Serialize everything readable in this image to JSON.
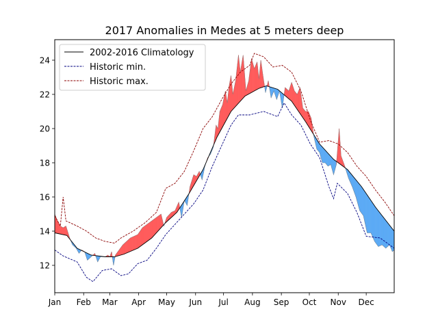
{
  "chart_data": {
    "type": "area",
    "title": "2017 Anomalies in Medes at 5 meters deep",
    "xlabel": "",
    "ylabel": "",
    "x_unit": "day_of_year",
    "xlim": [
      1,
      365
    ],
    "ylim": [
      10.4,
      25.2
    ],
    "yticks": [
      12,
      14,
      16,
      18,
      20,
      22,
      24
    ],
    "x_tick_labels": [
      {
        "day": 1,
        "label": "Jan"
      },
      {
        "day": 32,
        "label": "Feb"
      },
      {
        "day": 60,
        "label": "Mar"
      },
      {
        "day": 91,
        "label": "Apr"
      },
      {
        "day": 121,
        "label": "May"
      },
      {
        "day": 152,
        "label": "Jun"
      },
      {
        "day": 182,
        "label": "Jul"
      },
      {
        "day": 213,
        "label": "Aug"
      },
      {
        "day": 244,
        "label": "Sep"
      },
      {
        "day": 274,
        "label": "Oct"
      },
      {
        "day": 305,
        "label": "Nov"
      },
      {
        "day": 335,
        "label": "Dec"
      }
    ],
    "grid": false,
    "legend_position": "upper-left",
    "colors": {
      "climatology": "#000000",
      "historic_min": "#00007f",
      "historic_max": "#8b0000",
      "above": "#ff5a5a",
      "below": "#5aaaf5"
    },
    "series": [
      {
        "name": "2002-2016 Climatology",
        "style": "solid",
        "points": [
          [
            1,
            13.9
          ],
          [
            14,
            13.75
          ],
          [
            25,
            13.0
          ],
          [
            40,
            12.6
          ],
          [
            55,
            12.5
          ],
          [
            65,
            12.5
          ],
          [
            75,
            12.65
          ],
          [
            90,
            13.0
          ],
          [
            105,
            13.6
          ],
          [
            120,
            14.5
          ],
          [
            132,
            15.1
          ],
          [
            145,
            16.2
          ],
          [
            160,
            17.6
          ],
          [
            175,
            19.5
          ],
          [
            190,
            21.0
          ],
          [
            205,
            21.9
          ],
          [
            220,
            22.35
          ],
          [
            228,
            22.5
          ],
          [
            240,
            22.3
          ],
          [
            255,
            21.6
          ],
          [
            270,
            20.4
          ],
          [
            285,
            19.1
          ],
          [
            300,
            18.2
          ],
          [
            315,
            17.6
          ],
          [
            330,
            16.6
          ],
          [
            345,
            15.4
          ],
          [
            365,
            14.0
          ]
        ]
      },
      {
        "name": "Historic min.",
        "style": "dashed",
        "points": [
          [
            1,
            12.9
          ],
          [
            10,
            12.55
          ],
          [
            25,
            12.2
          ],
          [
            35,
            11.3
          ],
          [
            42,
            11.05
          ],
          [
            52,
            11.7
          ],
          [
            62,
            11.8
          ],
          [
            72,
            11.4
          ],
          [
            80,
            11.5
          ],
          [
            90,
            12.1
          ],
          [
            100,
            12.3
          ],
          [
            110,
            13.0
          ],
          [
            120,
            13.8
          ],
          [
            130,
            14.4
          ],
          [
            140,
            15.0
          ],
          [
            150,
            15.6
          ],
          [
            160,
            16.4
          ],
          [
            170,
            17.8
          ],
          [
            180,
            19.0
          ],
          [
            190,
            20.2
          ],
          [
            198,
            20.8
          ],
          [
            210,
            20.8
          ],
          [
            225,
            21.0
          ],
          [
            240,
            20.7
          ],
          [
            247,
            21.5
          ],
          [
            255,
            20.8
          ],
          [
            265,
            20.2
          ],
          [
            275,
            19.1
          ],
          [
            285,
            18.3
          ],
          [
            295,
            16.6
          ],
          [
            300,
            15.9
          ],
          [
            304,
            16.8
          ],
          [
            315,
            16.2
          ],
          [
            325,
            15.1
          ],
          [
            335,
            13.7
          ],
          [
            350,
            13.6
          ],
          [
            365,
            13.0
          ]
        ]
      },
      {
        "name": "Historic max.",
        "style": "dashed",
        "points": [
          [
            1,
            14.9
          ],
          [
            7,
            14.3
          ],
          [
            10,
            16.0
          ],
          [
            13,
            14.6
          ],
          [
            25,
            14.3
          ],
          [
            35,
            14.0
          ],
          [
            45,
            13.6
          ],
          [
            55,
            13.4
          ],
          [
            65,
            13.3
          ],
          [
            72,
            13.6
          ],
          [
            85,
            14.0
          ],
          [
            98,
            14.5
          ],
          [
            110,
            15.1
          ],
          [
            120,
            16.5
          ],
          [
            130,
            16.8
          ],
          [
            140,
            17.5
          ],
          [
            150,
            18.7
          ],
          [
            160,
            20.0
          ],
          [
            170,
            20.7
          ],
          [
            180,
            21.7
          ],
          [
            190,
            22.6
          ],
          [
            200,
            23.3
          ],
          [
            210,
            23.7
          ],
          [
            215,
            24.4
          ],
          [
            225,
            24.2
          ],
          [
            235,
            23.6
          ],
          [
            245,
            23.7
          ],
          [
            255,
            23.3
          ],
          [
            265,
            22.2
          ],
          [
            275,
            20.5
          ],
          [
            285,
            19.2
          ],
          [
            295,
            19.3
          ],
          [
            305,
            19.1
          ],
          [
            315,
            18.6
          ],
          [
            325,
            17.8
          ],
          [
            335,
            17.2
          ],
          [
            345,
            16.4
          ],
          [
            355,
            15.7
          ],
          [
            365,
            14.9
          ]
        ]
      },
      {
        "name": "2017",
        "style": "fill-anomaly",
        "points": [
          [
            1,
            15.0
          ],
          [
            4,
            14.6
          ],
          [
            7,
            14.3
          ],
          [
            10,
            14.2
          ],
          [
            13,
            14.3
          ],
          [
            17,
            13.6
          ],
          [
            20,
            13.2
          ],
          [
            24,
            13.0
          ],
          [
            27,
            12.7
          ],
          [
            30,
            12.9
          ],
          [
            33,
            12.8
          ],
          [
            36,
            12.3
          ],
          [
            40,
            12.5
          ],
          [
            44,
            12.7
          ],
          [
            47,
            12.2
          ],
          [
            50,
            12.5
          ],
          [
            55,
            12.5
          ],
          [
            58,
            12.6
          ],
          [
            60,
            12.5
          ],
          [
            62,
            12.8
          ],
          [
            64,
            12.0
          ],
          [
            66,
            12.6
          ],
          [
            70,
            12.9
          ],
          [
            74,
            13.2
          ],
          [
            78,
            13.4
          ],
          [
            82,
            13.6
          ],
          [
            86,
            13.7
          ],
          [
            90,
            13.8
          ],
          [
            95,
            14.2
          ],
          [
            100,
            14.4
          ],
          [
            105,
            14.6
          ],
          [
            110,
            14.8
          ],
          [
            115,
            15.0
          ],
          [
            118,
            14.3
          ],
          [
            121,
            14.8
          ],
          [
            126,
            15.1
          ],
          [
            130,
            15.2
          ],
          [
            134,
            15.7
          ],
          [
            137,
            14.8
          ],
          [
            140,
            15.8
          ],
          [
            143,
            15.5
          ],
          [
            146,
            16.6
          ],
          [
            150,
            17.3
          ],
          [
            153,
            17.2
          ],
          [
            156,
            17.5
          ],
          [
            159,
            17.0
          ],
          [
            162,
            17.8
          ],
          [
            165,
            18.3
          ],
          [
            168,
            18.5
          ],
          [
            171,
            18.9
          ],
          [
            174,
            20.2
          ],
          [
            176,
            20.0
          ],
          [
            178,
            21.0
          ],
          [
            181,
            21.4
          ],
          [
            184,
            22.2
          ],
          [
            186,
            21.5
          ],
          [
            188,
            22.5
          ],
          [
            190,
            23.1
          ],
          [
            192,
            22.0
          ],
          [
            195,
            22.8
          ],
          [
            198,
            24.3
          ],
          [
            200,
            23.3
          ],
          [
            203,
            24.3
          ],
          [
            206,
            22.2
          ],
          [
            209,
            22.8
          ],
          [
            212,
            24.1
          ],
          [
            215,
            23.5
          ],
          [
            218,
            23.9
          ],
          [
            220,
            22.9
          ],
          [
            222,
            24.0
          ],
          [
            224,
            23.2
          ],
          [
            227,
            22.1
          ],
          [
            230,
            22.8
          ],
          [
            233,
            21.8
          ],
          [
            236,
            22.2
          ],
          [
            239,
            21.7
          ],
          [
            242,
            22.2
          ],
          [
            245,
            21.2
          ],
          [
            248,
            22.4
          ],
          [
            252,
            22.2
          ],
          [
            255,
            22.7
          ],
          [
            258,
            22.2
          ],
          [
            261,
            22.0
          ],
          [
            264,
            22.4
          ],
          [
            267,
            21.2
          ],
          [
            270,
            21.0
          ],
          [
            273,
            21.0
          ],
          [
            276,
            20.6
          ],
          [
            279,
            19.5
          ],
          [
            282,
            18.8
          ],
          [
            285,
            18.6
          ],
          [
            288,
            18.0
          ],
          [
            291,
            18.0
          ],
          [
            294,
            17.8
          ],
          [
            297,
            17.9
          ],
          [
            300,
            17.3
          ],
          [
            303,
            17.9
          ],
          [
            306,
            20.0
          ],
          [
            308,
            18.4
          ],
          [
            312,
            17.8
          ],
          [
            316,
            17.1
          ],
          [
            320,
            16.6
          ],
          [
            324,
            16.0
          ],
          [
            328,
            15.2
          ],
          [
            332,
            14.9
          ],
          [
            336,
            13.9
          ],
          [
            340,
            13.9
          ],
          [
            344,
            13.4
          ],
          [
            348,
            13.1
          ],
          [
            352,
            13.2
          ],
          [
            356,
            13.0
          ],
          [
            360,
            13.2
          ],
          [
            363,
            12.8
          ],
          [
            365,
            12.9
          ]
        ]
      }
    ]
  }
}
